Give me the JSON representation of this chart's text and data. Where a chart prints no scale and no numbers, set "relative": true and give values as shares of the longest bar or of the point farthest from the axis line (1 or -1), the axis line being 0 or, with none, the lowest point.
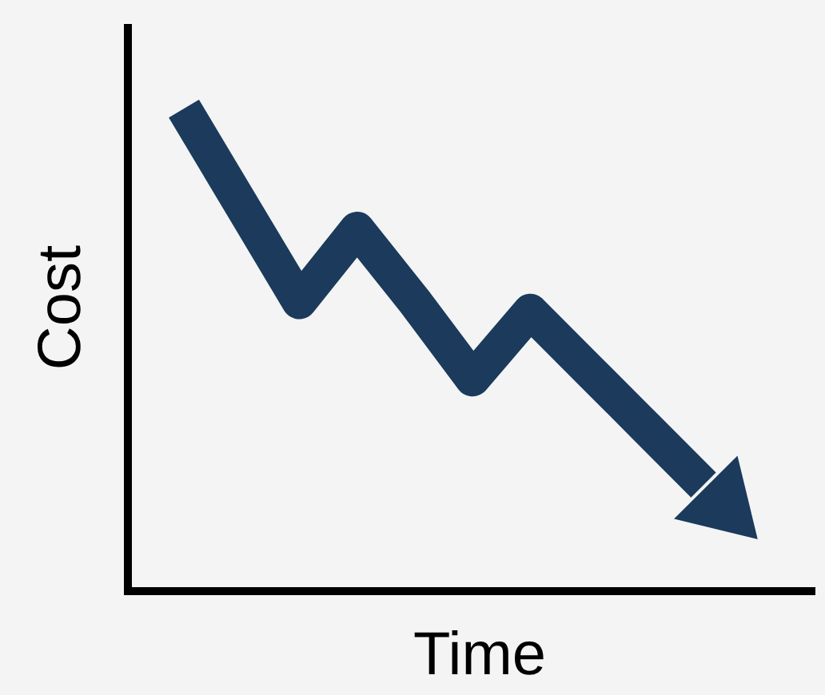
{
  "chart_data": {
    "type": "line",
    "xlabel": "Time",
    "ylabel": "Cost",
    "relative": true,
    "categories": [
      null,
      null,
      null,
      null,
      null,
      null,
      null,
      null,
      null,
      null
    ],
    "series": [
      {
        "color": "#1b3a5c",
        "values": [
          1,
          0.8,
          0.6,
          0.75,
          0.6,
          0.44,
          0.58,
          0.46,
          0.34,
          0.22
        ]
      }
    ]
  }
}
